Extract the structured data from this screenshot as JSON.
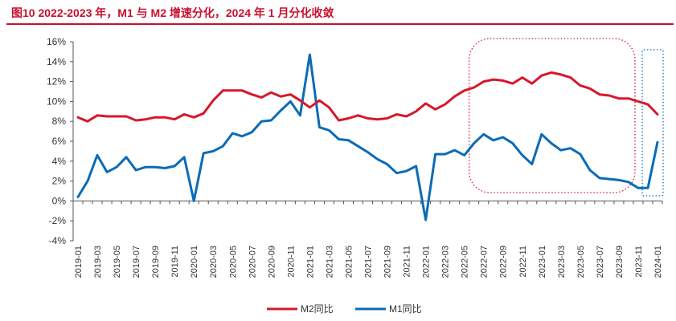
{
  "page": {
    "title": "图10  2022-2023 年，M1 与 M2 增速分化，2024 年 1 月分化收敛"
  },
  "colors": {
    "m2": "#d7182a",
    "m1": "#0a6bb8",
    "title": "#c8102e",
    "highlight": "#d7182a",
    "highlight2": "#0a6bb8"
  },
  "chart_data": {
    "type": "line",
    "title": "图10  2022-2023 年，M1 与 M2 增速分化，2024 年 1 月分化收敛",
    "ylim": [
      -4,
      16
    ],
    "yticks": [
      -4,
      -2,
      0,
      2,
      4,
      6,
      8,
      10,
      12,
      14,
      16
    ],
    "ytick_labels": [
      "-4%",
      "-2%",
      "0%",
      "2%",
      "4%",
      "6%",
      "8%",
      "10%",
      "12%",
      "14%",
      "16%"
    ],
    "x_tick_labels": [
      "2019-01",
      "2019-03",
      "2019-05",
      "2019-07",
      "2019-09",
      "2019-11",
      "2020-01",
      "2020-03",
      "2020-05",
      "2020-07",
      "2020-09",
      "2020-11",
      "2021-01",
      "2021-03",
      "2021-05",
      "2021-07",
      "2021-09",
      "2021-11",
      "2022-01",
      "2022-03",
      "2022-05",
      "2022-07",
      "2022-09",
      "2022-11",
      "2023-01",
      "2023-03",
      "2023-05",
      "2023-07",
      "2023-09",
      "2023-11",
      "2024-01"
    ],
    "grid": false,
    "legend": "bottom",
    "x": [
      "2019-01",
      "2019-02",
      "2019-03",
      "2019-04",
      "2019-05",
      "2019-06",
      "2019-07",
      "2019-08",
      "2019-09",
      "2019-10",
      "2019-11",
      "2019-12",
      "2020-01",
      "2020-02",
      "2020-03",
      "2020-04",
      "2020-05",
      "2020-06",
      "2020-07",
      "2020-08",
      "2020-09",
      "2020-10",
      "2020-11",
      "2020-12",
      "2021-01",
      "2021-02",
      "2021-03",
      "2021-04",
      "2021-05",
      "2021-06",
      "2021-07",
      "2021-08",
      "2021-09",
      "2021-10",
      "2021-11",
      "2021-12",
      "2022-01",
      "2022-02",
      "2022-03",
      "2022-04",
      "2022-05",
      "2022-06",
      "2022-07",
      "2022-08",
      "2022-09",
      "2022-10",
      "2022-11",
      "2022-12",
      "2023-01",
      "2023-02",
      "2023-03",
      "2023-04",
      "2023-05",
      "2023-06",
      "2023-07",
      "2023-08",
      "2023-09",
      "2023-10",
      "2023-11",
      "2023-12",
      "2024-01"
    ],
    "series": [
      {
        "name": "M2同比",
        "color": "#d7182a",
        "values": [
          8.4,
          8.0,
          8.6,
          8.5,
          8.5,
          8.5,
          8.1,
          8.2,
          8.4,
          8.4,
          8.2,
          8.7,
          8.4,
          8.8,
          10.1,
          11.1,
          11.1,
          11.1,
          10.7,
          10.4,
          10.9,
          10.5,
          10.7,
          10.1,
          9.4,
          10.1,
          9.4,
          8.1,
          8.3,
          8.6,
          8.3,
          8.2,
          8.3,
          8.7,
          8.5,
          9.0,
          9.8,
          9.2,
          9.7,
          10.5,
          11.1,
          11.4,
          12.0,
          12.2,
          12.1,
          11.8,
          12.4,
          11.8,
          12.6,
          12.9,
          12.7,
          12.4,
          11.6,
          11.3,
          10.7,
          10.6,
          10.3,
          10.3,
          10.0,
          9.7,
          8.7
        ]
      },
      {
        "name": "M1同比",
        "color": "#0a6bb8",
        "values": [
          0.4,
          2.0,
          4.6,
          2.9,
          3.4,
          4.4,
          3.1,
          3.4,
          3.4,
          3.3,
          3.5,
          4.4,
          0.0,
          4.8,
          5.0,
          5.5,
          6.8,
          6.5,
          6.9,
          8.0,
          8.1,
          9.1,
          10.0,
          8.6,
          14.7,
          7.4,
          7.1,
          6.2,
          6.1,
          5.5,
          4.9,
          4.2,
          3.7,
          2.8,
          3.0,
          3.5,
          -1.9,
          4.7,
          4.7,
          5.1,
          4.6,
          5.8,
          6.7,
          6.1,
          6.4,
          5.8,
          4.6,
          3.7,
          6.7,
          5.8,
          5.1,
          5.3,
          4.7,
          3.1,
          2.3,
          2.2,
          2.1,
          1.9,
          1.3,
          1.3,
          5.9
        ]
      }
    ],
    "highlights": [
      {
        "from": "2022-06",
        "to": "2023-10",
        "style": "dotted-rounded",
        "color": "#d7182a"
      },
      {
        "from": "2023-12",
        "to": "2024-01",
        "style": "dotted",
        "color": "#0a6bb8"
      }
    ]
  }
}
